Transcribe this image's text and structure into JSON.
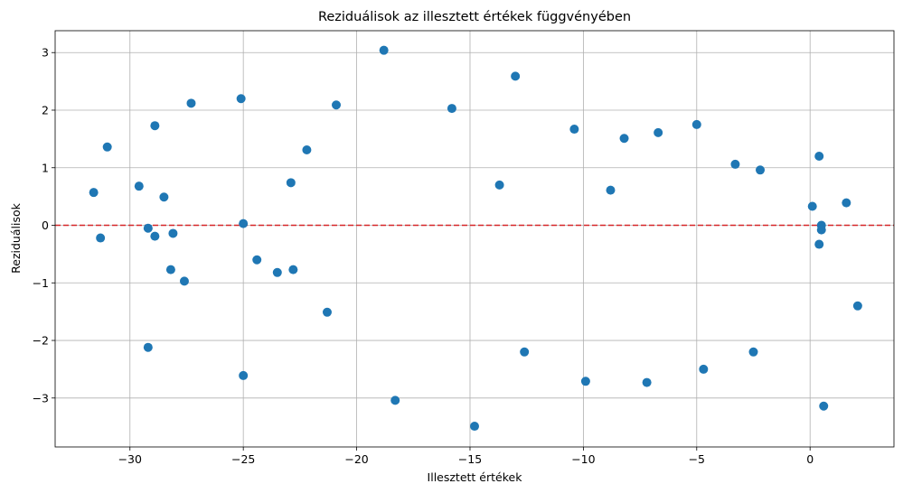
{
  "chart_data": {
    "type": "scatter",
    "title": "Reziduálisok az illesztett értékek függvényében",
    "xlabel": "Illesztett értékek",
    "ylabel": "Reziduálisok",
    "xlim": [
      -33.3,
      3.7
    ],
    "ylim": [
      -3.85,
      3.38
    ],
    "xticks": [
      -30,
      -25,
      -20,
      -15,
      -10,
      -5,
      0
    ],
    "xtick_labels": [
      "−30",
      "−25",
      "−20",
      "−15",
      "−10",
      "−5",
      "0"
    ],
    "yticks": [
      -3,
      -2,
      -1,
      0,
      1,
      2,
      3
    ],
    "ytick_labels": [
      "−3",
      "−2",
      "−1",
      "0",
      "1",
      "2",
      "3"
    ],
    "grid": true,
    "point_color": "#1f77b4",
    "reference_line": {
      "y": 0,
      "color": "#d62728",
      "style": "dashed"
    },
    "x": [
      -31.6,
      -31.0,
      -31.3,
      -29.6,
      -29.2,
      -28.9,
      -28.9,
      -29.2,
      -28.5,
      -28.1,
      -28.2,
      -27.6,
      -27.3,
      -25.1,
      -25.0,
      -25.0,
      -24.4,
      -23.5,
      -22.9,
      -22.8,
      -22.2,
      -21.3,
      -20.9,
      -18.8,
      -18.3,
      -15.8,
      -14.8,
      -13.7,
      -13.0,
      -12.6,
      -10.4,
      -9.9,
      -8.8,
      -8.2,
      -7.2,
      -6.7,
      -4.7,
      -5.0,
      -3.3,
      -2.5,
      -2.2,
      0.1,
      0.4,
      0.4,
      0.5,
      0.5,
      0.6,
      1.6,
      2.1
    ],
    "y": [
      0.57,
      1.36,
      -0.22,
      0.68,
      -0.05,
      -0.19,
      1.73,
      -2.12,
      0.49,
      -0.14,
      -0.77,
      -0.97,
      2.12,
      2.2,
      0.03,
      -2.61,
      -0.6,
      -0.82,
      0.74,
      -0.77,
      1.31,
      -1.51,
      2.09,
      3.04,
      -3.04,
      2.03,
      -3.49,
      0.7,
      2.59,
      -2.2,
      1.67,
      -2.71,
      0.61,
      1.51,
      -2.73,
      1.61,
      -2.5,
      1.75,
      1.06,
      -2.2,
      0.96,
      0.33,
      1.2,
      -0.33,
      0.0,
      -0.08,
      -3.14,
      0.39,
      -1.4
    ]
  }
}
